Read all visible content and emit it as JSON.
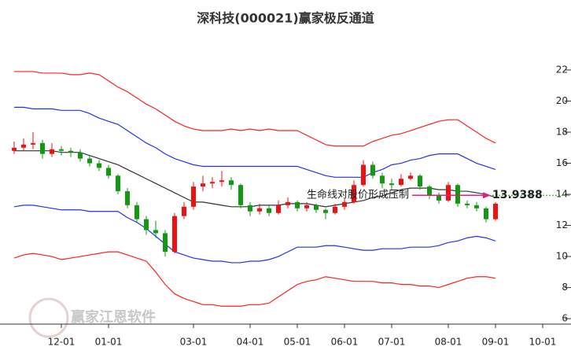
{
  "chart_data": {
    "type": "candlestick",
    "title": "深科技(000021)赢家极反通道",
    "watermark": "赢家江恩软件",
    "up_color": "#ee1111",
    "down_color": "#119911",
    "ylim": [
      5.65,
      22.96
    ],
    "yticks": [
      6,
      8,
      10,
      12,
      14,
      16,
      18,
      20,
      22
    ],
    "categories": [
      null,
      null,
      null,
      null,
      null,
      "12-01",
      null,
      null,
      null,
      null,
      "01-01",
      null,
      null,
      null,
      null,
      null,
      null,
      null,
      null,
      "03-01",
      null,
      null,
      null,
      null,
      null,
      "04-01",
      null,
      null,
      null,
      null,
      "05-01",
      null,
      null,
      null,
      null,
      "06-01",
      null,
      null,
      null,
      null,
      "07-01",
      null,
      null,
      null,
      null,
      null,
      "08-01",
      null,
      null,
      null,
      null,
      "09-01",
      null,
      null,
      null,
      null,
      "10-01"
    ],
    "candles": [
      [
        16.8,
        17.4,
        16.6,
        17.0
      ],
      [
        17.0,
        17.6,
        16.8,
        17.2
      ],
      [
        17.2,
        18.0,
        16.9,
        17.3
      ],
      [
        17.3,
        17.5,
        16.3,
        16.6
      ],
      [
        16.6,
        17.3,
        16.4,
        16.9
      ],
      [
        16.9,
        17.1,
        16.5,
        16.8
      ],
      [
        16.8,
        17.0,
        16.4,
        16.7
      ],
      [
        16.7,
        16.9,
        16.1,
        16.3
      ],
      [
        16.3,
        16.5,
        15.8,
        16.0
      ],
      [
        16.0,
        16.2,
        15.5,
        15.7
      ],
      [
        15.7,
        15.9,
        15.0,
        15.2
      ],
      [
        15.2,
        15.3,
        14.0,
        14.2
      ],
      [
        14.2,
        14.4,
        13.1,
        13.3
      ],
      [
        13.3,
        13.5,
        12.2,
        12.4
      ],
      [
        12.4,
        12.6,
        11.4,
        11.7
      ],
      [
        11.7,
        12.3,
        11.2,
        11.5
      ],
      [
        11.5,
        11.7,
        10.0,
        10.3
      ],
      [
        10.3,
        12.8,
        10.2,
        12.6
      ],
      [
        12.6,
        13.5,
        12.4,
        13.2
      ],
      [
        13.2,
        14.8,
        13.0,
        14.5
      ],
      [
        14.5,
        15.2,
        14.2,
        14.7
      ],
      [
        14.7,
        15.1,
        14.4,
        14.8
      ],
      [
        14.8,
        15.5,
        14.5,
        14.9
      ],
      [
        14.9,
        15.1,
        14.3,
        14.6
      ],
      [
        14.6,
        14.7,
        13.1,
        13.3
      ],
      [
        13.3,
        13.5,
        12.6,
        12.9
      ],
      [
        12.9,
        13.4,
        12.7,
        13.1
      ],
      [
        13.1,
        13.3,
        12.6,
        12.8
      ],
      [
        12.8,
        13.6,
        12.7,
        13.3
      ],
      [
        13.3,
        13.8,
        13.1,
        13.5
      ],
      [
        13.5,
        13.6,
        12.9,
        13.1
      ],
      [
        13.1,
        13.5,
        12.9,
        13.3
      ],
      [
        13.3,
        13.4,
        12.8,
        13.0
      ],
      [
        13.0,
        13.1,
        12.4,
        12.8
      ],
      [
        12.8,
        13.4,
        12.7,
        13.2
      ],
      [
        13.2,
        13.7,
        13.0,
        13.5
      ],
      [
        13.5,
        14.9,
        13.4,
        14.6
      ],
      [
        14.6,
        16.2,
        14.5,
        15.9
      ],
      [
        15.9,
        16.1,
        15.0,
        15.2
      ],
      [
        15.2,
        15.4,
        14.4,
        14.7
      ],
      [
        14.7,
        15.0,
        14.3,
        14.6
      ],
      [
        14.6,
        15.3,
        14.5,
        15.0
      ],
      [
        15.0,
        15.4,
        14.9,
        15.2
      ],
      [
        15.2,
        15.3,
        14.3,
        14.5
      ],
      [
        14.5,
        14.6,
        13.7,
        13.9
      ],
      [
        13.9,
        14.1,
        13.4,
        13.6
      ],
      [
        13.6,
        14.8,
        13.5,
        14.6
      ],
      [
        14.6,
        14.7,
        13.2,
        13.4
      ],
      [
        13.4,
        13.6,
        13.1,
        13.3
      ],
      [
        13.3,
        13.5,
        12.9,
        13.1
      ],
      [
        13.1,
        13.2,
        12.2,
        12.4
      ],
      [
        12.4,
        13.5,
        12.3,
        13.4
      ]
    ],
    "lines": [
      {
        "color": "#ff2020",
        "values": [
          21.9,
          21.9,
          21.9,
          21.8,
          21.8,
          21.8,
          21.7,
          21.7,
          21.8,
          21.7,
          21.3,
          20.9,
          20.6,
          20.2,
          19.8,
          19.5,
          19.1,
          18.7,
          18.4,
          18.2,
          18.1,
          18.1,
          18.1,
          18.2,
          18.1,
          18.2,
          18.1,
          18.2,
          18.1,
          18.1,
          18.1,
          17.8,
          17.5,
          17.2,
          17.1,
          17.1,
          17.1,
          17.1,
          17.4,
          17.6,
          17.8,
          17.9,
          18.1,
          18.3,
          18.5,
          18.7,
          18.8,
          18.8,
          18.4,
          18.0,
          17.6,
          17.3,
          null,
          null,
          null,
          null,
          null
        ]
      },
      {
        "color": "#2233ee",
        "values": [
          19.6,
          19.6,
          19.5,
          19.5,
          19.5,
          19.4,
          19.4,
          19.4,
          19.2,
          18.9,
          18.7,
          18.5,
          18.1,
          17.7,
          17.3,
          17.0,
          16.6,
          16.3,
          16.1,
          15.9,
          15.8,
          15.8,
          15.8,
          15.8,
          15.8,
          15.8,
          15.8,
          15.8,
          15.8,
          15.8,
          15.8,
          15.6,
          15.4,
          15.2,
          15.1,
          15.1,
          15.1,
          15.1,
          15.4,
          15.6,
          15.9,
          16.0,
          16.2,
          16.3,
          16.5,
          16.6,
          16.6,
          16.6,
          16.3,
          16.0,
          15.8,
          15.6,
          null,
          null,
          null,
          null,
          null
        ]
      },
      {
        "color": "#333333",
        "values": [
          16.8,
          16.8,
          16.8,
          16.8,
          16.8,
          16.7,
          16.7,
          16.7,
          16.5,
          16.3,
          16.1,
          15.9,
          15.6,
          15.3,
          15.0,
          14.7,
          14.4,
          14.1,
          13.8,
          13.5,
          13.5,
          13.4,
          13.3,
          13.2,
          13.2,
          13.2,
          13.3,
          13.3,
          13.3,
          13.4,
          13.4,
          13.4,
          13.3,
          13.2,
          13.3,
          13.4,
          13.5,
          13.6,
          13.8,
          13.9,
          14.1,
          14.3,
          14.4,
          14.4,
          14.4,
          14.3,
          14.3,
          14.2,
          14.2,
          14.1,
          14.0,
          13.8,
          null,
          null,
          null,
          null,
          null
        ]
      },
      {
        "color": "#2233ee",
        "values": [
          13.2,
          13.3,
          13.3,
          13.2,
          13.1,
          13.0,
          13.0,
          13.0,
          12.9,
          12.9,
          12.9,
          12.9,
          12.5,
          12.2,
          11.8,
          11.3,
          10.8,
          10.3,
          10.1,
          9.9,
          9.8,
          9.7,
          9.7,
          9.6,
          9.6,
          9.7,
          9.7,
          9.8,
          10.0,
          10.3,
          10.6,
          10.6,
          10.6,
          10.7,
          10.7,
          10.6,
          10.5,
          10.4,
          10.4,
          10.5,
          10.5,
          10.5,
          10.6,
          10.6,
          10.6,
          10.7,
          10.9,
          11.0,
          11.2,
          11.3,
          11.2,
          11.0,
          null,
          null,
          null,
          null,
          null
        ]
      },
      {
        "color": "#ff2020",
        "values": [
          9.9,
          10.1,
          10.2,
          10.1,
          10.0,
          9.8,
          9.9,
          10.0,
          10.1,
          10.2,
          10.3,
          10.3,
          10.1,
          9.9,
          9.7,
          9.0,
          8.2,
          7.6,
          7.3,
          7.1,
          6.9,
          6.9,
          6.8,
          6.8,
          6.8,
          6.9,
          6.9,
          7.0,
          7.4,
          7.8,
          8.2,
          8.4,
          8.5,
          8.7,
          8.6,
          8.5,
          8.4,
          8.4,
          8.4,
          8.3,
          8.3,
          8.2,
          8.2,
          8.1,
          8.1,
          8.0,
          8.2,
          8.4,
          8.6,
          8.7,
          8.7,
          8.6,
          null,
          null,
          null,
          null,
          null
        ]
      }
    ],
    "annotation": {
      "text": "生命线对股价形成压制",
      "value": 13.9388,
      "color": "#e0207a",
      "level_color": "#119911"
    }
  }
}
